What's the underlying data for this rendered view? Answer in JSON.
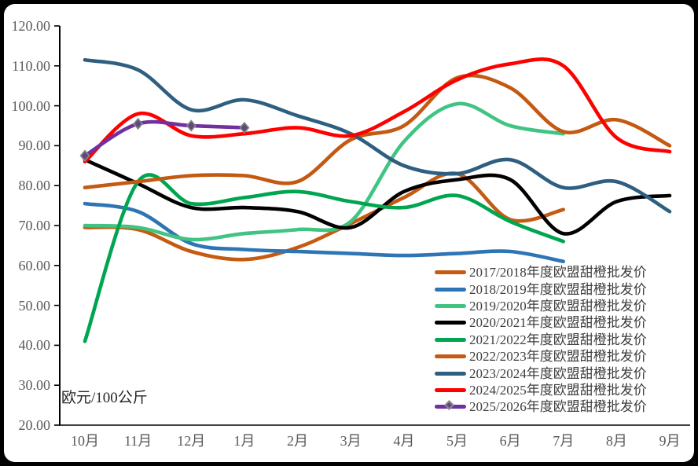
{
  "window": {
    "frame_color": "#000000",
    "card_color": "#ffffff"
  },
  "chart_data": {
    "type": "line",
    "title": "",
    "unit_label": "欧元/100公斤",
    "categories": [
      "10月",
      "11月",
      "12月",
      "1月",
      "2月",
      "3月",
      "4月",
      "5月",
      "6月",
      "7月",
      "8月",
      "9月"
    ],
    "y_ticks": [
      "20.00",
      "30.00",
      "40.00",
      "50.00",
      "60.00",
      "70.00",
      "80.00",
      "90.00",
      "100.00",
      "110.00",
      "120.00"
    ],
    "ylim": [
      20,
      120
    ],
    "ytick_step": 10,
    "grid": false,
    "legend_position": "inside-right-bottom",
    "axis_color": "#000000",
    "tick_label_color": "#595959",
    "legend_text_color": "#3E3E3E",
    "marker_fill": "#5E4B7B",
    "marker_stroke": "#8a8a8a",
    "series": [
      {
        "name": "2017/2018年度欧盟甜橙批发价",
        "color": "#C55A11",
        "marker": "none",
        "values": [
          69.5,
          69,
          63.5,
          61.5,
          64.5,
          70.5,
          77,
          83,
          71.5,
          74,
          null,
          null
        ]
      },
      {
        "name": "2018/2019年度欧盟甜橙批发价",
        "color": "#2E75B6",
        "marker": "none",
        "values": [
          75.5,
          73.5,
          65.5,
          64,
          63.5,
          63,
          62.5,
          63,
          63.5,
          61,
          null,
          null
        ]
      },
      {
        "name": "2019/2020年度欧盟甜橙批发价",
        "color": "#41C483",
        "marker": "none",
        "values": [
          70,
          69.5,
          66.5,
          68,
          69,
          71,
          91,
          100.5,
          95,
          93,
          null,
          null
        ]
      },
      {
        "name": "2020/2021年度欧盟甜橙批发价",
        "color": "#000000",
        "marker": "none",
        "values": [
          86.5,
          80.5,
          74.5,
          74.5,
          73.5,
          69.5,
          78.5,
          81.5,
          81.5,
          68,
          76,
          77.5
        ]
      },
      {
        "name": "2021/2022年度欧盟甜橙批发价",
        "color": "#00A550",
        "marker": "none",
        "values": [
          41,
          81,
          75.5,
          77,
          78.5,
          76,
          74.5,
          77.5,
          71,
          66,
          null,
          null
        ]
      },
      {
        "name": "2022/2023年度欧盟甜橙批发价",
        "color": "#C45911",
        "marker": "none",
        "values": [
          79.5,
          81,
          82.5,
          82.5,
          81,
          91.5,
          95,
          107,
          104.5,
          93.5,
          96.5,
          90
        ]
      },
      {
        "name": "2023/2024年度欧盟甜橙批发价",
        "color": "#2E5F81",
        "marker": "none",
        "values": [
          111.5,
          109,
          99,
          101.5,
          97.5,
          93,
          85,
          83,
          86.5,
          79.5,
          81,
          73.5
        ]
      },
      {
        "name": "2024/2025年度欧盟甜橙批发价",
        "color": "#FE0000",
        "marker": "none",
        "values": [
          86,
          98,
          92.5,
          93,
          94.5,
          92.5,
          98.5,
          106.5,
          110.5,
          110,
          92,
          88.5
        ]
      },
      {
        "name": "2025/2026年度欧盟甜橙批发价",
        "color": "#7030A0",
        "marker": "diamond",
        "values": [
          87.5,
          95.5,
          95,
          94.5,
          null,
          null,
          null,
          null,
          null,
          null,
          null,
          null
        ]
      }
    ]
  }
}
